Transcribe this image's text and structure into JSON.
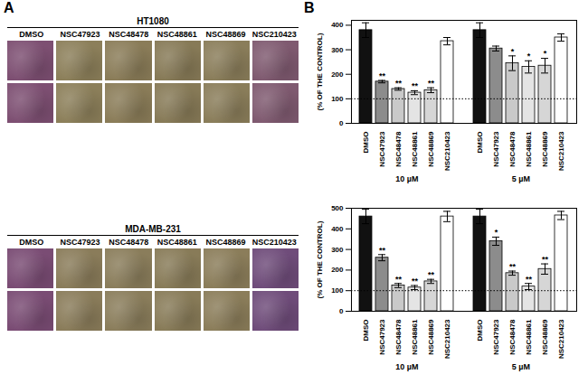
{
  "panel_labels": [
    "A",
    "B"
  ],
  "image_grids": [
    {
      "title": "HT1080",
      "columns": [
        "DMSO",
        "NSC47923",
        "NSC48478",
        "NSC48861",
        "NSC48869",
        "NSC210423"
      ],
      "colors": [
        "#7d4f72",
        "#8c7f5a",
        "#8a7c58",
        "#877a57",
        "#8a7d5a",
        "#7f5a70"
      ],
      "rows": 2
    },
    {
      "title": "MDA-MB-231",
      "columns": [
        "DMSO",
        "NSC47923",
        "NSC48478",
        "NSC48861",
        "NSC48869",
        "NSC210423"
      ],
      "colors": [
        "#7a4c74",
        "#8a7c5a",
        "#8a7d5b",
        "#887b58",
        "#8b7d5a",
        "#6f4c7a"
      ],
      "rows": 2
    }
  ],
  "chart_data": [
    {
      "type": "bar",
      "y_label": "(% OF THE CONTROL)",
      "categories": [
        "DMSO",
        "NSC47923",
        "NSC48478",
        "NSC48861",
        "NSC48869",
        "NSC210423"
      ],
      "colors": [
        "#111111",
        "#8c8c8c",
        "#c9c9c9",
        "#e4e4e4",
        "#d6d6d6",
        "#ffffff"
      ],
      "ylim": [
        0,
        420
      ],
      "yticks": [
        0,
        100,
        200,
        300,
        400
      ],
      "reference_line": 100,
      "series": [
        {
          "name": "10 µM",
          "values": [
            380,
            170,
            140,
            125,
            135,
            335
          ],
          "errors": [
            30,
            5,
            5,
            8,
            10,
            15
          ],
          "significance": [
            null,
            "**",
            "**",
            "**",
            "**",
            null
          ]
        },
        {
          "name": "5 µM",
          "values": [
            380,
            305,
            245,
            230,
            235,
            350
          ],
          "errors": [
            30,
            10,
            30,
            25,
            30,
            15
          ],
          "significance": [
            null,
            null,
            "*",
            "*",
            "*",
            null
          ]
        }
      ]
    },
    {
      "type": "bar",
      "y_label": "(% OF THE CONTROL)",
      "categories": [
        "DMSO",
        "NSC47923",
        "NSC48478",
        "NSC48861",
        "NSC48869",
        "NSC210423"
      ],
      "colors": [
        "#111111",
        "#8c8c8c",
        "#c9c9c9",
        "#e4e4e4",
        "#d6d6d6",
        "#ffffff"
      ],
      "ylim": [
        0,
        500
      ],
      "yticks": [
        0,
        100,
        200,
        300,
        400,
        500
      ],
      "reference_line": 100,
      "series": [
        {
          "name": "10 µM",
          "values": [
            460,
            260,
            125,
            115,
            145,
            460
          ],
          "errors": [
            35,
            15,
            10,
            10,
            10,
            25
          ],
          "significance": [
            null,
            "**",
            "**",
            "**",
            "**",
            null
          ]
        },
        {
          "name": "5 µM",
          "values": [
            460,
            340,
            185,
            120,
            205,
            465
          ],
          "errors": [
            35,
            20,
            10,
            15,
            25,
            20
          ],
          "significance": [
            null,
            "*",
            "**",
            "**",
            "**",
            null
          ]
        }
      ]
    }
  ]
}
